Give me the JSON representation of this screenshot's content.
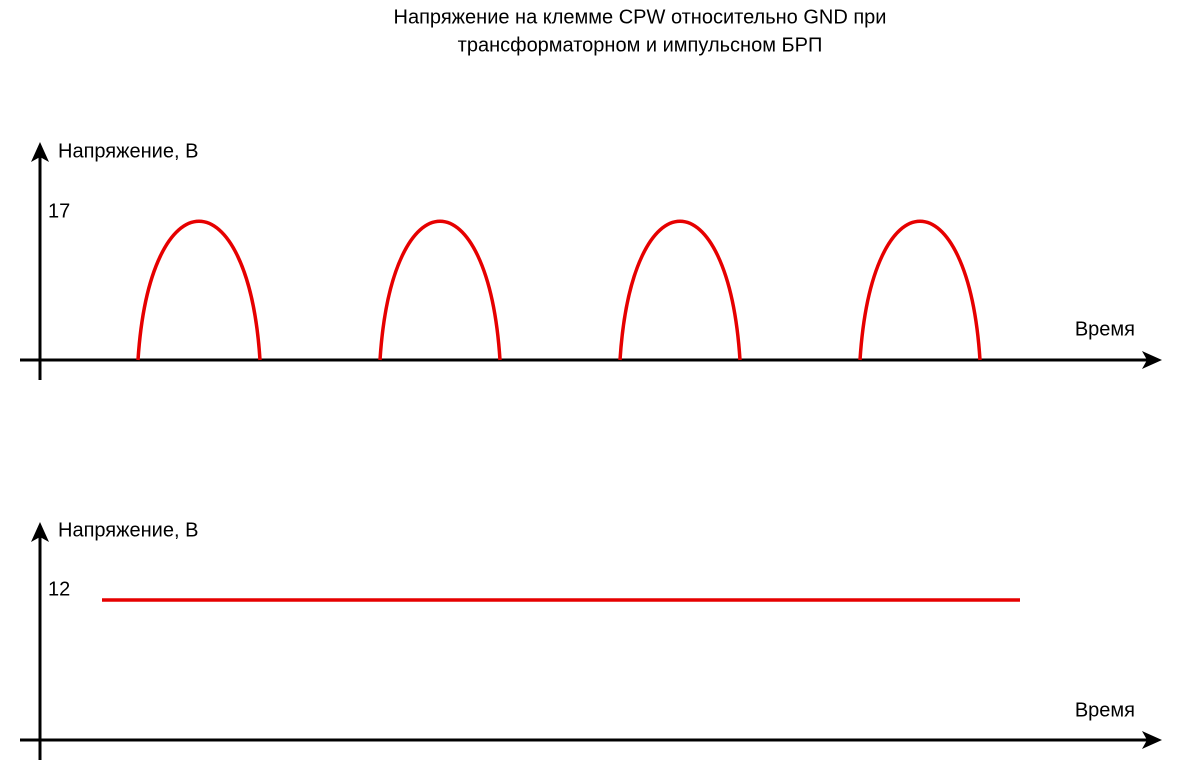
{
  "header": {
    "title": [
      "Напряжение на клемме CPW относительно GND при",
      "трансформаторном и импульсном БРП"
    ]
  },
  "plots": [
    {
      "y_label": "Напряжение, В",
      "x_label": "Время",
      "level": 17
    },
    {
      "y_label": "Напряжение, В",
      "x_label": "Время",
      "level": 12
    }
  ]
}
